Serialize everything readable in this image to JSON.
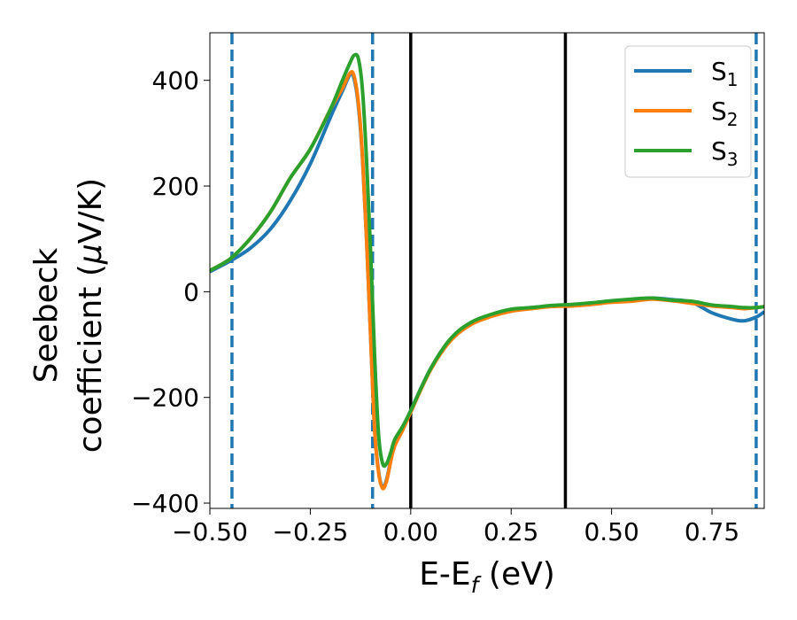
{
  "chart_data": {
    "type": "line",
    "xlabel": {
      "base": "E-E",
      "sub": "f",
      "suffix": " (eV)"
    },
    "ylabel": {
      "line1": "Seebeck",
      "line2_pre": "coefficient  (",
      "mu": "μ",
      "line2_post": "V/K)"
    },
    "xlim": [
      -0.5,
      0.88
    ],
    "ylim": [
      -410,
      490
    ],
    "xticks": [
      -0.5,
      -0.25,
      0.0,
      0.25,
      0.5,
      0.75
    ],
    "xtick_labels": [
      "−0.50",
      "−0.25",
      "0.00",
      "0.25",
      "0.50",
      "0.75"
    ],
    "yticks": [
      -400,
      -200,
      0,
      200,
      400
    ],
    "ytick_labels": [
      "−400",
      "−200",
      "0",
      "200",
      "400"
    ],
    "grid": false,
    "legend_position": "top-right",
    "vlines_dashed": {
      "color": "#1f77b4",
      "x": [
        -0.445,
        -0.095,
        0.86
      ]
    },
    "vlines_solid": {
      "color": "#000000",
      "x": [
        0.0,
        0.385
      ]
    },
    "series": [
      {
        "name": "S",
        "sub": "1",
        "color": "#1f77b4",
        "x": [
          -0.5,
          -0.45,
          -0.4,
          -0.35,
          -0.3,
          -0.25,
          -0.2,
          -0.17,
          -0.15,
          -0.14,
          -0.13,
          -0.12,
          -0.11,
          -0.1,
          -0.09,
          -0.08,
          -0.07,
          -0.06,
          -0.05,
          -0.04,
          -0.02,
          0.0,
          0.05,
          0.1,
          0.15,
          0.2,
          0.25,
          0.3,
          0.35,
          0.4,
          0.45,
          0.5,
          0.55,
          0.6,
          0.65,
          0.7,
          0.75,
          0.8,
          0.83,
          0.86,
          0.88
        ],
        "y": [
          38,
          58,
          82,
          118,
          172,
          242,
          330,
          380,
          412,
          400,
          350,
          250,
          100,
          -80,
          -260,
          -340,
          -370,
          -355,
          -320,
          -290,
          -260,
          -225,
          -145,
          -90,
          -60,
          -45,
          -35,
          -30,
          -27,
          -25,
          -22,
          -18,
          -15,
          -12,
          -15,
          -20,
          -40,
          -52,
          -55,
          -48,
          -38
        ]
      },
      {
        "name": "S",
        "sub": "2",
        "color": "#ff7f0e",
        "x": [
          -0.5,
          -0.45,
          -0.4,
          -0.35,
          -0.3,
          -0.25,
          -0.2,
          -0.17,
          -0.15,
          -0.14,
          -0.13,
          -0.12,
          -0.11,
          -0.1,
          -0.09,
          -0.08,
          -0.07,
          -0.06,
          -0.05,
          -0.04,
          -0.02,
          0.0,
          0.05,
          0.1,
          0.15,
          0.2,
          0.25,
          0.3,
          0.35,
          0.4,
          0.45,
          0.5,
          0.55,
          0.6,
          0.65,
          0.7,
          0.75,
          0.8,
          0.83,
          0.86,
          0.88
        ],
        "y": [
          40,
          62,
          100,
          150,
          215,
          270,
          345,
          385,
          415,
          405,
          355,
          255,
          100,
          -80,
          -260,
          -342,
          -372,
          -358,
          -322,
          -292,
          -262,
          -228,
          -147,
          -92,
          -62,
          -47,
          -37,
          -32,
          -28,
          -27,
          -24,
          -20,
          -18,
          -14,
          -17,
          -22,
          -27,
          -30,
          -32,
          -30,
          -28
        ]
      },
      {
        "name": "S",
        "sub": "3",
        "color": "#2ca02c",
        "x": [
          -0.5,
          -0.45,
          -0.4,
          -0.35,
          -0.3,
          -0.25,
          -0.2,
          -0.17,
          -0.15,
          -0.14,
          -0.13,
          -0.12,
          -0.11,
          -0.1,
          -0.09,
          -0.08,
          -0.07,
          -0.06,
          -0.05,
          -0.04,
          -0.02,
          0.0,
          0.05,
          0.1,
          0.15,
          0.2,
          0.25,
          0.3,
          0.35,
          0.4,
          0.45,
          0.5,
          0.55,
          0.6,
          0.65,
          0.7,
          0.75,
          0.8,
          0.83,
          0.86,
          0.88
        ],
        "y": [
          40,
          62,
          100,
          150,
          215,
          270,
          345,
          400,
          435,
          448,
          440,
          380,
          250,
          80,
          -120,
          -270,
          -325,
          -325,
          -305,
          -280,
          -255,
          -225,
          -145,
          -88,
          -58,
          -43,
          -33,
          -30,
          -26,
          -24,
          -21,
          -17,
          -14,
          -12,
          -16,
          -18,
          -25,
          -28,
          -30,
          -30,
          -28
        ]
      }
    ]
  }
}
